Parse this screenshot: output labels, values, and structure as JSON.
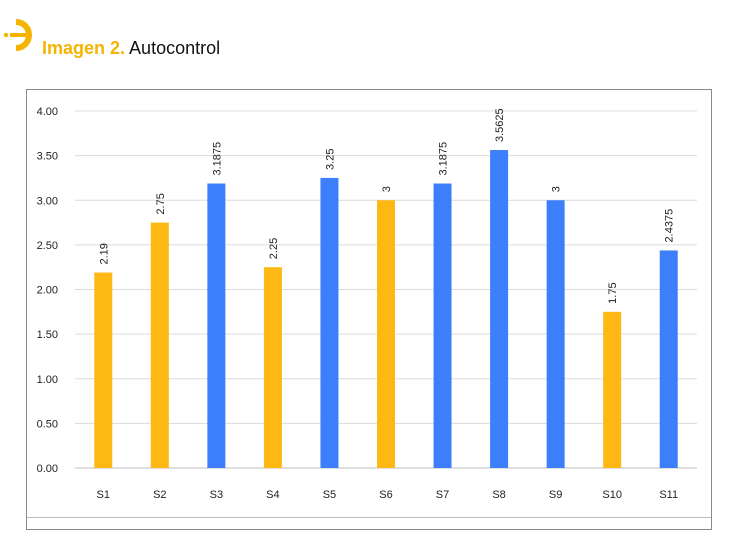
{
  "header": {
    "title_prefix": "Imagen 2.",
    "title_main": "Autocontrol",
    "logo_icon": "brand-logo-icon"
  },
  "colors": {
    "yellow": "#FDB813",
    "blue": "#3D7EFA",
    "accent": "#F5B400"
  },
  "chart_data": {
    "type": "bar",
    "title": "",
    "xlabel": "",
    "ylabel": "",
    "ylim": [
      0,
      4
    ],
    "yticks": [
      "0.00",
      "0.50",
      "1.00",
      "1.50",
      "2.00",
      "2.50",
      "3.00",
      "3.50",
      "4.00"
    ],
    "grid": true,
    "categories": [
      "S1",
      "S2",
      "S3",
      "S4",
      "S5",
      "S6",
      "S7",
      "S8",
      "S9",
      "S10",
      "S11"
    ],
    "values": [
      2.19,
      2.75,
      3.1875,
      2.25,
      3.25,
      3,
      3.1875,
      3.5625,
      3,
      1.75,
      2.4375
    ],
    "labels": [
      "2.19",
      "2.75",
      "3.1875",
      "2.25",
      "3.25",
      "3",
      "3.1875",
      "3.5625",
      "3",
      "1.75",
      "2.4375"
    ],
    "bar_colors": [
      "yellow",
      "yellow",
      "blue",
      "yellow",
      "blue",
      "yellow",
      "blue",
      "blue",
      "blue",
      "yellow",
      "blue"
    ]
  }
}
